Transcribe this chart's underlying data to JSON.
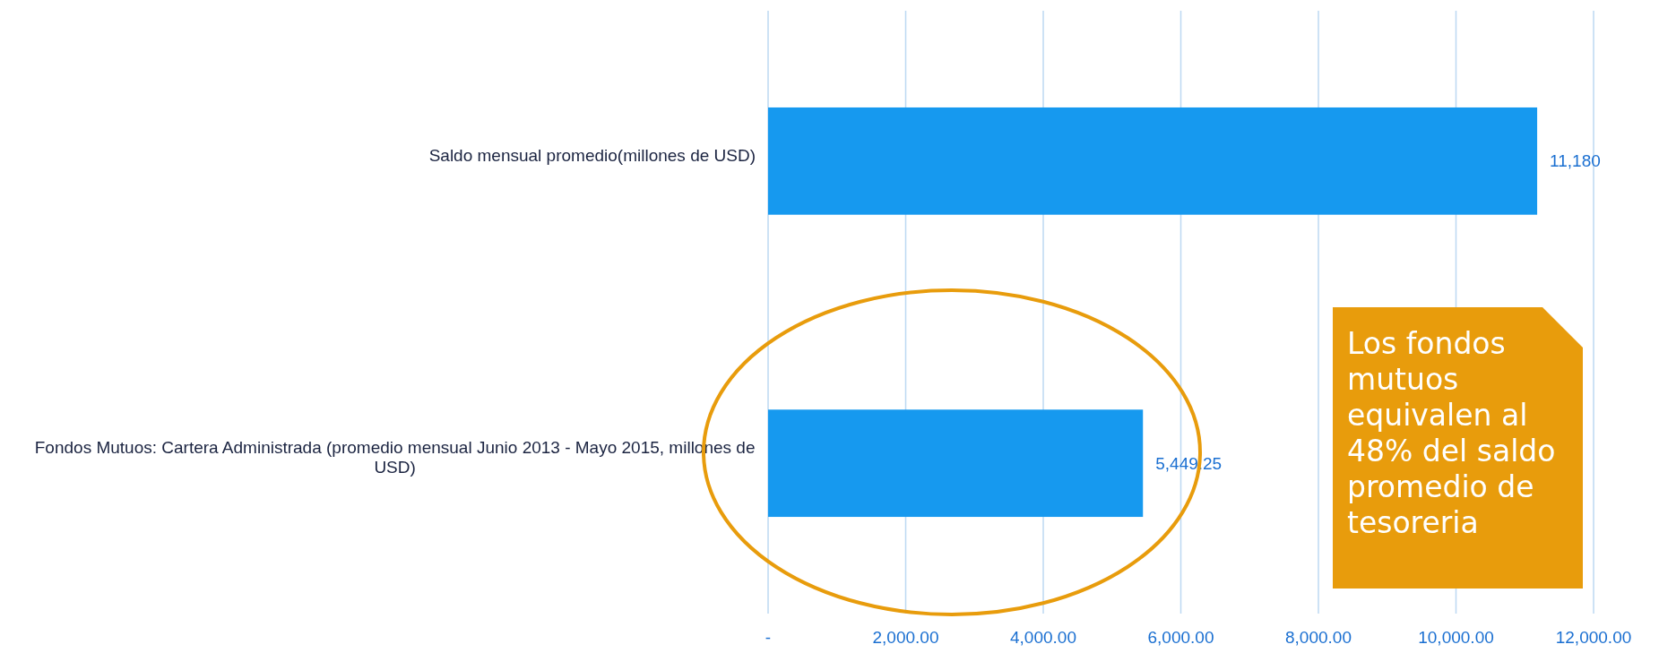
{
  "chart_data": {
    "type": "bar",
    "orientation": "horizontal",
    "categories": [
      "Saldo mensual promedio(millones de USD)",
      "Fondos Mutuos: Cartera Administrada (promedio mensual Junio 2013 - Mayo 2015, millones de USD)"
    ],
    "values": [
      11180,
      5449.25
    ],
    "value_labels": [
      "11,180",
      "5,449.25"
    ],
    "color": "#1699ef",
    "xlim": [
      0,
      12000
    ],
    "xticks": [
      {
        "value": 0,
        "label": "-"
      },
      {
        "value": 2000,
        "label": "2,000.00"
      },
      {
        "value": 4000,
        "label": "4,000.00"
      },
      {
        "value": 6000,
        "label": "6,000.00"
      },
      {
        "value": 8000,
        "label": "8,000.00"
      },
      {
        "value": 10000,
        "label": "10,000.00"
      },
      {
        "value": 12000,
        "label": "12,000.00"
      }
    ],
    "grid": "x",
    "annotations": [
      "Los fondos mutuos equivalen al 48% del saldo promedio de tesoreria"
    ]
  }
}
